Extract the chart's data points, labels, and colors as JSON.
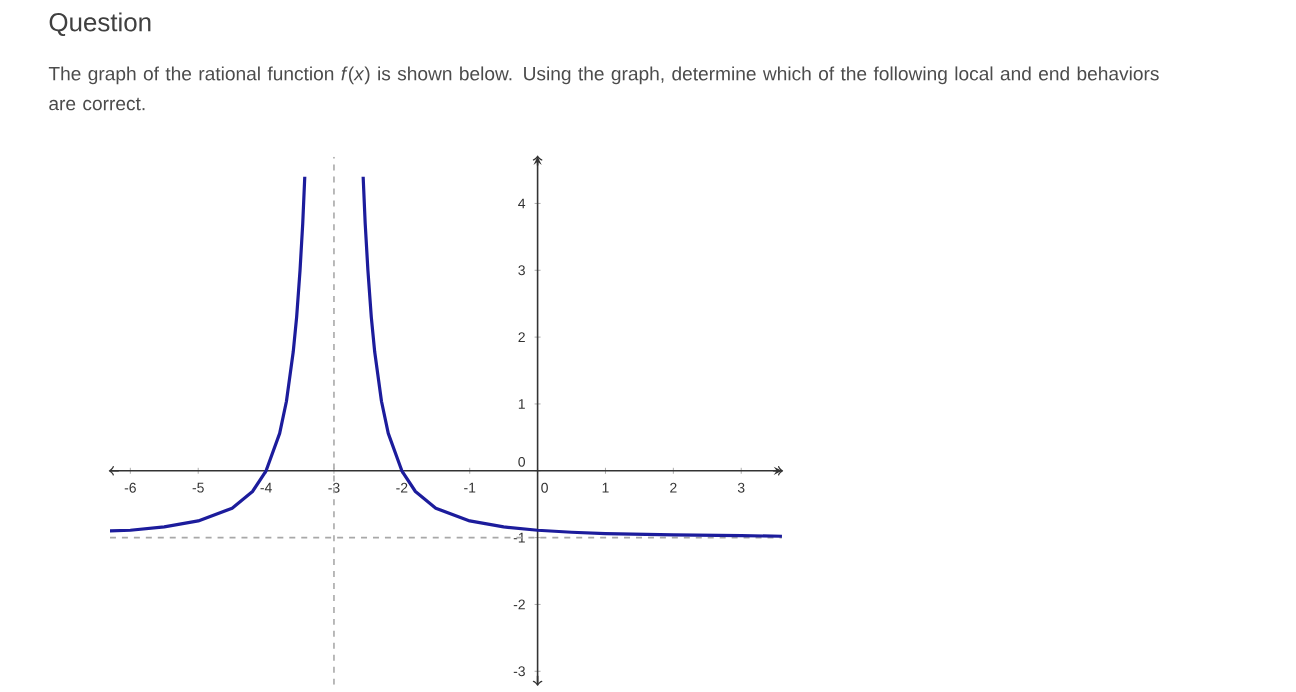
{
  "chart_data": {
    "type": "line",
    "title": "Question",
    "subtitle": "The graph of the rational function *f*(*x*) is shown below. Using the graph, determine which of the following local and end behaviors are correct.",
    "series": [
      {
        "color": "#1c1c9c",
        "x": [
          -6.3,
          -6,
          -5.5,
          -5,
          -4.5,
          -4.2,
          -4,
          -3.8,
          -3.7,
          -3.6,
          -3.55,
          -3.5,
          -3.46,
          -3.43
        ],
        "values": [
          -0.9,
          -0.89,
          -0.84,
          -0.75,
          -0.56,
          -0.31,
          0,
          0.56,
          1.04,
          1.78,
          2.3,
          3.0,
          3.7,
          4.4
        ]
      },
      {
        "color": "#1c1c9c",
        "x": [
          -2.57,
          -2.54,
          -2.5,
          -2.45,
          -2.4,
          -2.3,
          -2.2,
          -2,
          -1.8,
          -1.5,
          -1,
          -0.5,
          0,
          0.5,
          1,
          2,
          3,
          3.6
        ],
        "values": [
          4.4,
          3.7,
          3.0,
          2.3,
          1.78,
          1.04,
          0.56,
          0,
          -0.31,
          -0.56,
          -0.75,
          -0.84,
          -0.89,
          -0.92,
          -0.94,
          -0.96,
          -0.97,
          -0.98
        ]
      }
    ],
    "xlim": [
      -6.3,
      3.6
    ],
    "ylim": [
      -3.2,
      4.7
    ],
    "xticks": [
      -6,
      -5,
      -4,
      -3,
      -2,
      -1,
      0,
      1,
      2,
      3
    ],
    "yticks": [
      -3,
      -2,
      -1,
      0,
      1,
      2,
      3,
      4
    ],
    "ref_lines": [
      {
        "axis": "x",
        "value": -3,
        "color": "#a8a8a8",
        "line_style": "dashed"
      },
      {
        "axis": "y",
        "value": -1,
        "color": "#a8a8a8",
        "line_style": "dashed"
      }
    ],
    "line_style": "solid",
    "grid": false
  }
}
